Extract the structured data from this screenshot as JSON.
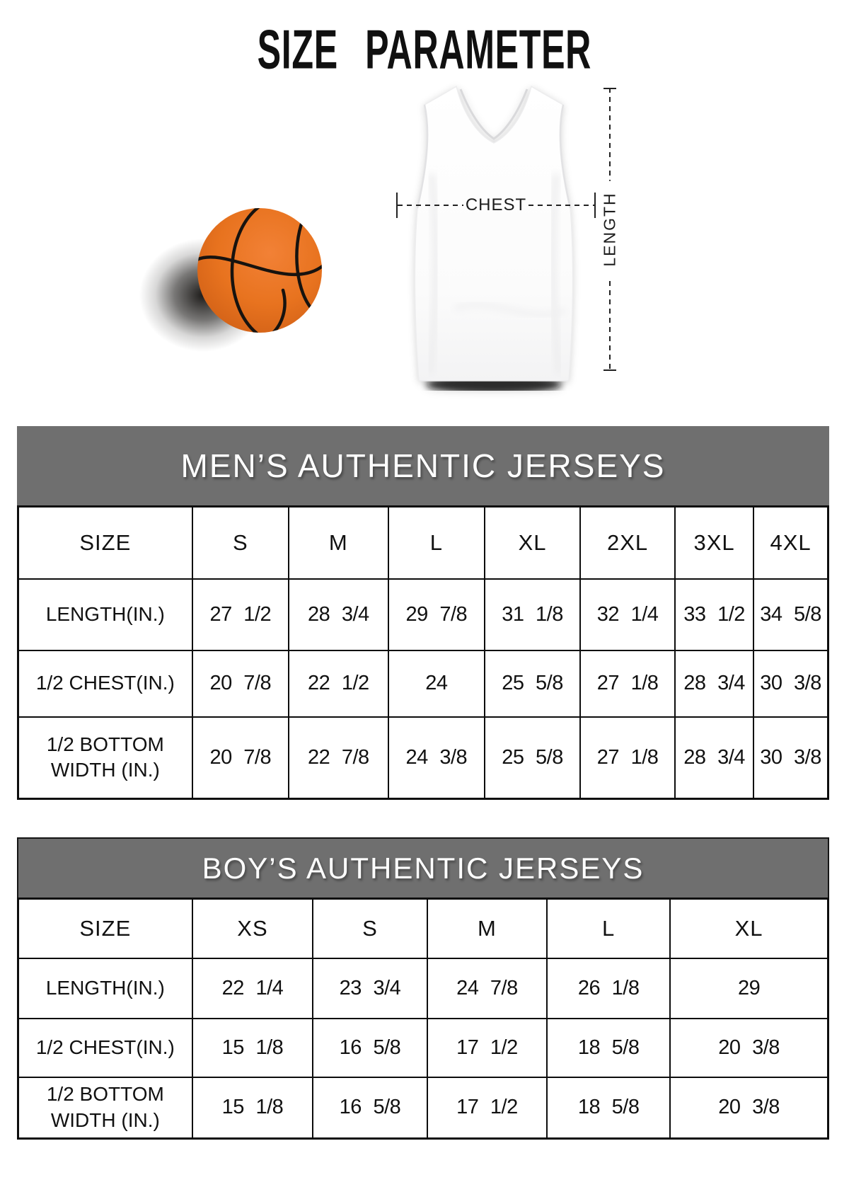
{
  "title": "SIZE PARAMETER",
  "diagram": {
    "chest_label": "CHEST",
    "length_label": "LENGTH"
  },
  "colors": {
    "band_grey": "#6f6f6f",
    "ball_orange": "#e8731f",
    "border_black": "#0d0d0d"
  },
  "tables": [
    {
      "id": "mens",
      "header": "MEN’S AUTHENTIC JERSEYS",
      "size_header": "SIZE",
      "columns": [
        "S",
        "M",
        "L",
        "XL",
        "2XL",
        "3XL",
        "4XL"
      ],
      "rows": [
        {
          "label": "LENGTH(IN.)",
          "values": [
            "27 1/2",
            "28 3/4",
            "29 7/8",
            "31 1/8",
            "32 1/4",
            "33 1/2",
            "34 5/8"
          ]
        },
        {
          "label": "1/2 CHEST(IN.)",
          "values": [
            "20 7/8",
            "22 1/2",
            "24",
            "25 5/8",
            "27 1/8",
            "28 3/4",
            "30 3/8"
          ]
        },
        {
          "label": "1/2 BOTTOM\nWIDTH (IN.)",
          "values": [
            "20 7/8",
            "22 7/8",
            "24 3/8",
            "25 5/8",
            "27 1/8",
            "28 3/4",
            "30 3/8"
          ]
        }
      ]
    },
    {
      "id": "boys",
      "header": "BOY’S AUTHENTIC JERSEYS",
      "size_header": "SIZE",
      "columns": [
        "XS",
        "S",
        "M",
        "L",
        "XL"
      ],
      "rows": [
        {
          "label": "LENGTH(IN.)",
          "values": [
            "22 1/4",
            "23 3/4",
            "24 7/8",
            "26 1/8",
            "29"
          ]
        },
        {
          "label": "1/2 CHEST(IN.)",
          "values": [
            "15 1/8",
            "16 5/8",
            "17 1/2",
            "18 5/8",
            "20 3/8"
          ]
        },
        {
          "label": "1/2 BOTTOM\nWIDTH (IN.)",
          "values": [
            "15 1/8",
            "16 5/8",
            "17 1/2",
            "18 5/8",
            "20 3/8"
          ]
        }
      ]
    }
  ]
}
